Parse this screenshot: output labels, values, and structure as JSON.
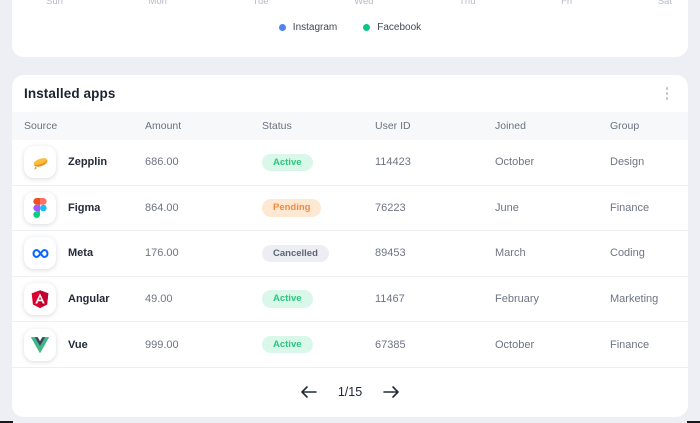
{
  "chart_card": {
    "x_labels": [
      "Sun",
      "Mon",
      "Tue",
      "Wed",
      "Thu",
      "Fri",
      "Sat"
    ],
    "legend": [
      {
        "label": "Instagram",
        "color": "#4f82f3",
        "icon": "instagram-series-dot"
      },
      {
        "label": "Facebook",
        "color": "#10c38b",
        "icon": "facebook-series-dot"
      }
    ]
  },
  "installed_apps": {
    "title": "Installed apps",
    "menu_icon": "kebab-menu-icon",
    "columns": [
      "Source",
      "Amount",
      "Status",
      "User ID",
      "Joined",
      "Group"
    ],
    "rows": [
      {
        "app": "Zepplin",
        "icon": "zeplin-icon",
        "amount": "686.00",
        "status": "Active",
        "user_id": "114423",
        "joined": "October",
        "group": "Design"
      },
      {
        "app": "Figma",
        "icon": "figma-icon",
        "amount": "864.00",
        "status": "Pending",
        "user_id": "76223",
        "joined": "June",
        "group": "Finance"
      },
      {
        "app": "Meta",
        "icon": "meta-icon",
        "amount": "176.00",
        "status": "Cancelled",
        "user_id": "89453",
        "joined": "March",
        "group": "Coding"
      },
      {
        "app": "Angular",
        "icon": "angular-icon",
        "amount": "49.00",
        "status": "Active",
        "user_id": "11467",
        "joined": "February",
        "group": "Marketing"
      },
      {
        "app": "Vue",
        "icon": "vue-icon",
        "amount": "999.00",
        "status": "Active",
        "user_id": "67385",
        "joined": "October",
        "group": "Finance"
      }
    ],
    "status_colors": {
      "Active": {
        "bg": "#d9f8e9",
        "text": "#2bc77f"
      },
      "Pending": {
        "bg": "#ffe8d2",
        "text": "#ef8b41"
      },
      "Cancelled": {
        "bg": "#eceef3",
        "text": "#5d6572"
      }
    },
    "pagination": {
      "current": "1/15",
      "prev_icon": "arrow-left-icon",
      "next_icon": "arrow-right-icon"
    }
  }
}
